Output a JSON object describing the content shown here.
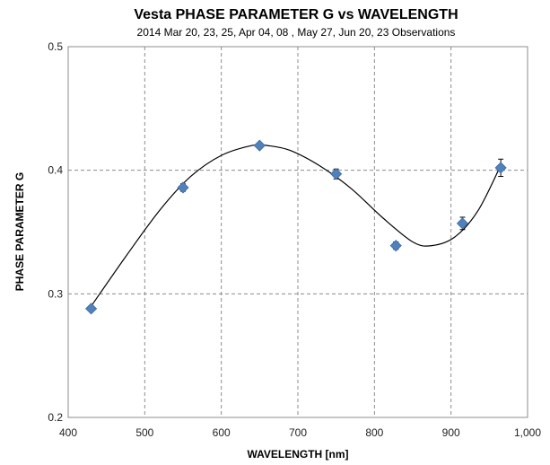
{
  "chart_data": {
    "type": "scatter",
    "title": "Vesta PHASE PARAMETER G vs WAVELENGTH",
    "subtitle": "2014  Mar 20,  23, 25, Apr 04,  08 , May 27, Jun 20,  23 Observations",
    "xlabel": "WAVELENGTH [nm]",
    "ylabel": "PHASE PARAMETER G",
    "xlim": [
      400,
      1000
    ],
    "ylim": [
      0.2,
      0.5
    ],
    "x_ticks": [
      "400",
      "500",
      "600",
      "700",
      "800",
      "900",
      "1,000"
    ],
    "y_ticks": [
      "0.2",
      "0.3",
      "0.4",
      "0.5"
    ],
    "grid": true,
    "series": [
      {
        "x": [
          430,
          550,
          650,
          750,
          828,
          915,
          965
        ],
        "y": [
          0.288,
          0.386,
          0.42,
          0.397,
          0.339,
          0.357,
          0.402
        ],
        "yerr": [
          0.002,
          0.003,
          0.002,
          0.004,
          0.003,
          0.005,
          0.007
        ],
        "marker": "diamond",
        "color": "#4f81bd"
      }
    ],
    "trendline": {
      "type": "polynomial",
      "x": [
        430,
        475,
        520,
        560,
        600,
        640,
        660,
        690,
        730,
        770,
        810,
        850,
        875,
        905,
        935,
        965
      ],
      "y": [
        0.29,
        0.33,
        0.368,
        0.395,
        0.412,
        0.42,
        0.42,
        0.416,
        0.403,
        0.385,
        0.362,
        0.342,
        0.339,
        0.346,
        0.367,
        0.404
      ],
      "color": "#000000"
    }
  }
}
